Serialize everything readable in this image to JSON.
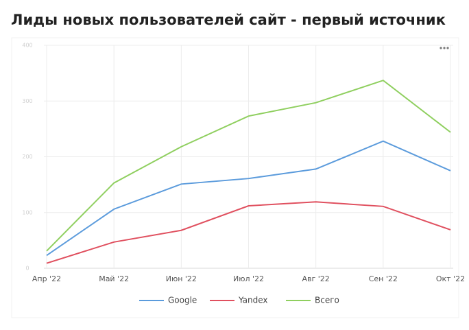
{
  "chart_data": {
    "type": "line",
    "title": "Лиды новых пользователей сайт - первый источник",
    "categories": [
      "Апр '22",
      "Май '22",
      "Июн '22",
      "Июл '22",
      "Авг '22",
      "Сен '22",
      "Окт '22"
    ],
    "series": [
      {
        "name": "Google",
        "color": "#5b9bdc",
        "values": [
          23,
          106,
          151,
          161,
          178,
          228,
          175
        ]
      },
      {
        "name": "Yandex",
        "color": "#e0505f",
        "values": [
          9,
          47,
          68,
          112,
          119,
          111,
          69
        ]
      },
      {
        "name": "Всего",
        "color": "#8fcf5f",
        "values": [
          31,
          153,
          218,
          273,
          297,
          337,
          244
        ]
      }
    ],
    "ylim": [
      0,
      400
    ],
    "yticks": [
      0,
      100,
      200,
      300,
      400
    ],
    "grid": true,
    "legend": "bottom"
  }
}
